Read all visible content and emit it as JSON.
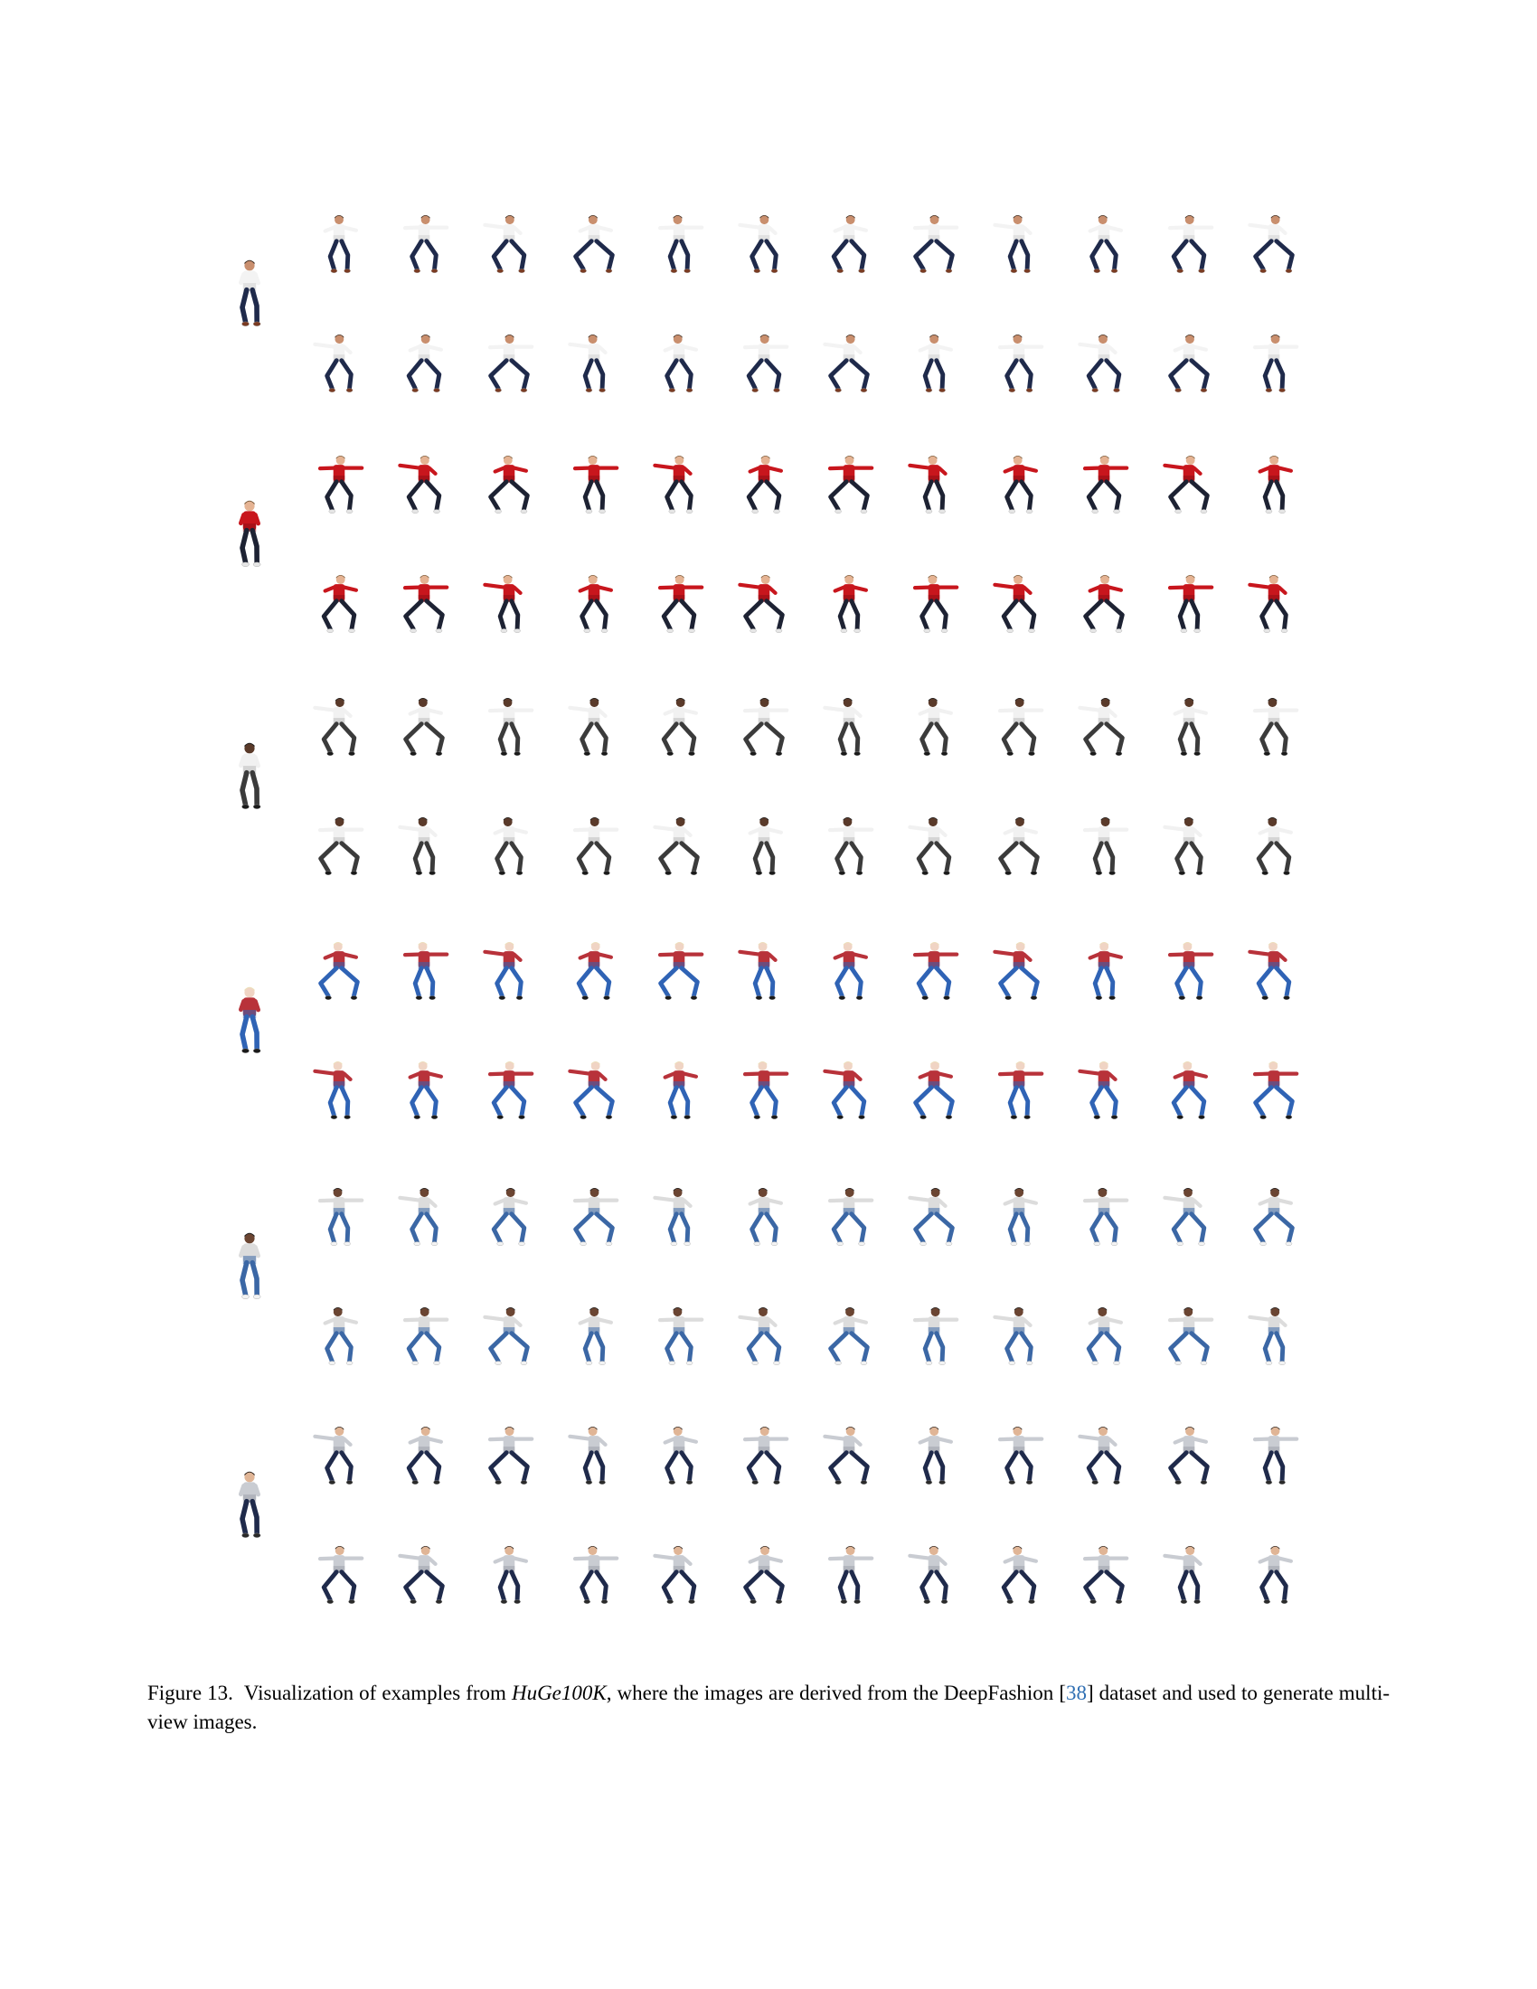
{
  "figure": {
    "views_per_row": 12,
    "rows_per_subject": 2,
    "subjects": [
      {
        "id": "subject-1",
        "top_color": "#f3f3f3",
        "top_shade": "#d2d2d2",
        "bottom_color": "#1f2a4b",
        "shoe_color": "#7a3b22",
        "skin_color": "#c98f6e",
        "hair_color": "#3a2a1f"
      },
      {
        "id": "subject-2",
        "top_color": "#c8161d",
        "top_shade": "#8e0f14",
        "bottom_color": "#1d2233",
        "shoe_color": "#e6e6e6",
        "skin_color": "#e5b393",
        "hair_color": "#7a5a3a"
      },
      {
        "id": "subject-3",
        "top_color": "#f1f1f1",
        "top_shade": "#bcbcbc",
        "bottom_color": "#3b3b3b",
        "shoe_color": "#1a1a1a",
        "skin_color": "#5a3a2a",
        "hair_color": "#1a1a1a"
      },
      {
        "id": "subject-4",
        "top_color": "#b8323a",
        "top_shade": "#2f63b5",
        "bottom_color": "#2f63b5",
        "shoe_color": "#1a1a1a",
        "skin_color": "#f0d4c4",
        "hair_color": "#ece0b8"
      },
      {
        "id": "subject-5",
        "top_color": "#dcdcdc",
        "top_shade": "#3b67a5",
        "bottom_color": "#3b67a5",
        "shoe_color": "#f2f2f2",
        "skin_color": "#6b4532",
        "hair_color": "#1c1c1c"
      },
      {
        "id": "subject-6",
        "top_color": "#c9ccd2",
        "top_shade": "#9da1a9",
        "bottom_color": "#1f2a4b",
        "shoe_color": "#2a2a2a",
        "skin_color": "#e0b596",
        "hair_color": "#2b1f18"
      }
    ]
  },
  "caption": {
    "label": "Figure 13.",
    "text_before": "Visualization of examples from ",
    "dataset_name": "HuGe100K",
    "text_middle": ", where the images are derived from the DeepFashion [",
    "citation": "38",
    "text_after": "] dataset and used to generate multi-view images."
  }
}
